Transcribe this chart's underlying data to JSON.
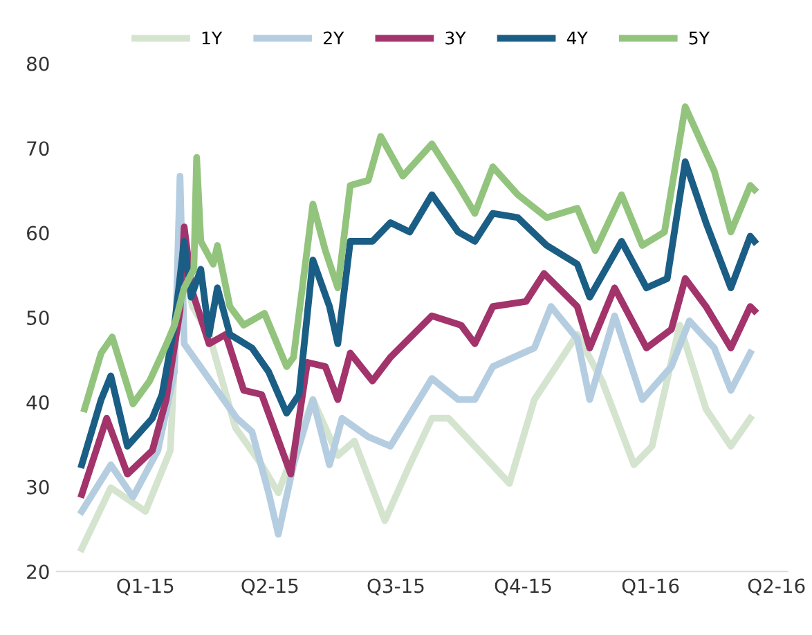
{
  "chart_data": {
    "type": "line",
    "legend": "top",
    "grid": false,
    "line_style": "solid",
    "ylim": [
      20,
      80
    ],
    "yticks": [
      20,
      30,
      40,
      50,
      60,
      70,
      80
    ],
    "xlim": [
      "2014-10-29",
      "2016-04-09"
    ],
    "xticks": [
      {
        "value": "2015-01-01",
        "label": "Q1-15"
      },
      {
        "value": "2015-04-01",
        "label": "Q2-15"
      },
      {
        "value": "2015-07-01",
        "label": "Q3-15"
      },
      {
        "value": "2015-10-01",
        "label": "Q4-15"
      },
      {
        "value": "2016-01-01",
        "label": "Q1-16"
      },
      {
        "value": "2016-04-01",
        "label": "Q2-16"
      }
    ],
    "series": [
      {
        "name": "1Y",
        "color": "#d4e4cf",
        "x": [
          "2014-11-16",
          "2014-12-07",
          "2015-01-01",
          "2015-01-19",
          "2015-01-26",
          "2015-02-04",
          "2015-02-16",
          "2015-03-07",
          "2015-03-26",
          "2015-04-07",
          "2015-05-02",
          "2015-05-20",
          "2015-06-01",
          "2015-06-23",
          "2015-07-11",
          "2015-07-27",
          "2015-08-08",
          "2015-08-27",
          "2015-09-21",
          "2015-10-09",
          "2015-11-09",
          "2015-11-27",
          "2015-12-20",
          "2016-01-02",
          "2016-01-22",
          "2016-02-10",
          "2016-02-28",
          "2016-03-13"
        ],
        "values": [
          22.7,
          29.9,
          27.1,
          34.3,
          59.0,
          51.3,
          48.0,
          37.0,
          32.6,
          29.3,
          40.3,
          33.7,
          35.4,
          26.0,
          32.6,
          38.1,
          38.1,
          34.8,
          30.4,
          40.3,
          48.0,
          42.5,
          32.6,
          34.8,
          49.1,
          39.2,
          34.8,
          38.1
        ]
      },
      {
        "name": "2Y",
        "color": "#b5cde0",
        "x": [
          "2014-11-16",
          "2014-12-07",
          "2014-12-23",
          "2015-01-10",
          "2015-01-22",
          "2015-01-26",
          "2015-01-29",
          "2015-03-08",
          "2015-03-19",
          "2015-03-31",
          "2015-04-07",
          "2015-04-18",
          "2015-05-02",
          "2015-05-14",
          "2015-05-23",
          "2015-06-11",
          "2015-06-27",
          "2015-07-27",
          "2015-08-15",
          "2015-08-27",
          "2015-09-09",
          "2015-10-09",
          "2015-10-21",
          "2015-11-09",
          "2015-11-18",
          "2015-12-06",
          "2015-12-26",
          "2016-01-16",
          "2016-01-29",
          "2016-02-16",
          "2016-02-28",
          "2016-03-13"
        ],
        "values": [
          27.1,
          32.6,
          28.8,
          34.3,
          43.6,
          66.7,
          46.9,
          38.1,
          36.5,
          29.3,
          24.4,
          32.6,
          40.3,
          32.6,
          38.1,
          35.9,
          34.8,
          42.8,
          40.3,
          40.3,
          44.2,
          46.4,
          51.3,
          47.5,
          40.3,
          50.2,
          40.3,
          44.2,
          49.6,
          46.4,
          41.4,
          45.8
        ]
      },
      {
        "name": "3Y",
        "color": "#a2346b",
        "x": [
          "2014-11-16",
          "2014-12-04",
          "2014-12-19",
          "2015-01-06",
          "2015-01-16",
          "2015-01-26",
          "2015-01-29",
          "2015-02-04",
          "2015-02-16",
          "2015-02-28",
          "2015-03-13",
          "2015-03-26",
          "2015-04-16",
          "2015-04-28",
          "2015-05-11",
          "2015-05-20",
          "2015-05-29",
          "2015-06-14",
          "2015-06-27",
          "2015-07-27",
          "2015-08-17",
          "2015-08-27",
          "2015-09-09",
          "2015-10-03",
          "2015-10-16",
          "2015-11-09",
          "2015-11-18",
          "2015-12-06",
          "2015-12-29",
          "2016-01-16",
          "2016-01-26",
          "2016-02-10",
          "2016-02-28",
          "2016-03-13",
          "2016-03-16"
        ],
        "values": [
          29.1,
          38.1,
          31.5,
          34.3,
          40.3,
          50.8,
          60.7,
          53.0,
          46.9,
          48.0,
          41.4,
          40.9,
          31.5,
          44.7,
          44.2,
          40.3,
          45.8,
          42.5,
          45.3,
          50.2,
          49.1,
          46.9,
          51.3,
          51.9,
          55.2,
          51.3,
          46.4,
          53.5,
          46.4,
          48.6,
          54.6,
          51.3,
          46.4,
          51.3,
          50.8
        ]
      },
      {
        "name": "4Y",
        "color": "#1a5e85",
        "x": [
          "2014-11-16",
          "2014-11-30",
          "2014-12-07",
          "2014-12-19",
          "2015-01-06",
          "2015-01-13",
          "2015-01-22",
          "2015-01-29",
          "2015-02-03",
          "2015-02-10",
          "2015-02-16",
          "2015-02-22",
          "2015-03-03",
          "2015-03-19",
          "2015-03-31",
          "2015-04-13",
          "2015-04-22",
          "2015-05-02",
          "2015-05-14",
          "2015-05-20",
          "2015-05-29",
          "2015-06-14",
          "2015-06-27",
          "2015-07-11",
          "2015-07-27",
          "2015-08-15",
          "2015-08-27",
          "2015-09-09",
          "2015-09-27",
          "2015-10-18",
          "2015-11-09",
          "2015-11-18",
          "2015-12-11",
          "2015-12-29",
          "2016-01-13",
          "2016-01-26",
          "2016-02-10",
          "2016-02-28",
          "2016-03-13",
          "2016-03-16"
        ],
        "values": [
          32.6,
          40.3,
          43.1,
          34.8,
          38.1,
          40.9,
          49.1,
          59.0,
          52.4,
          55.7,
          48.0,
          53.5,
          48.0,
          46.4,
          43.6,
          38.7,
          40.9,
          56.8,
          51.3,
          46.9,
          59.0,
          59.0,
          61.2,
          60.1,
          64.5,
          60.1,
          59.0,
          62.3,
          61.8,
          58.5,
          56.3,
          52.4,
          59.0,
          53.5,
          54.6,
          68.4,
          61.2,
          53.5,
          59.6,
          59.0
        ]
      },
      {
        "name": "5Y",
        "color": "#93c47d",
        "x": [
          "2014-11-18",
          "2014-11-30",
          "2014-12-08",
          "2014-12-23",
          "2015-01-04",
          "2015-01-15",
          "2015-01-22",
          "2015-01-29",
          "2015-02-05",
          "2015-02-07",
          "2015-02-10",
          "2015-02-19",
          "2015-02-22",
          "2015-03-03",
          "2015-03-13",
          "2015-03-28",
          "2015-04-13",
          "2015-04-18",
          "2015-05-02",
          "2015-05-11",
          "2015-05-20",
          "2015-05-29",
          "2015-06-11",
          "2015-06-20",
          "2015-07-06",
          "2015-07-27",
          "2015-08-15",
          "2015-08-27",
          "2015-09-09",
          "2015-09-27",
          "2015-10-18",
          "2015-11-09",
          "2015-11-22",
          "2015-12-11",
          "2015-12-26",
          "2016-01-11",
          "2016-01-26",
          "2016-02-16",
          "2016-02-28",
          "2016-03-13",
          "2016-03-16"
        ],
        "values": [
          39.2,
          45.8,
          47.7,
          39.8,
          42.5,
          46.4,
          49.1,
          53.5,
          55.7,
          68.9,
          59.0,
          56.3,
          58.5,
          51.3,
          49.1,
          50.5,
          44.2,
          45.3,
          63.4,
          57.9,
          53.5,
          65.6,
          66.2,
          71.4,
          66.7,
          70.5,
          65.6,
          62.3,
          67.8,
          64.5,
          61.8,
          62.9,
          57.9,
          64.5,
          58.5,
          60.1,
          74.9,
          67.3,
          60.1,
          65.6,
          65.1
        ]
      }
    ]
  }
}
